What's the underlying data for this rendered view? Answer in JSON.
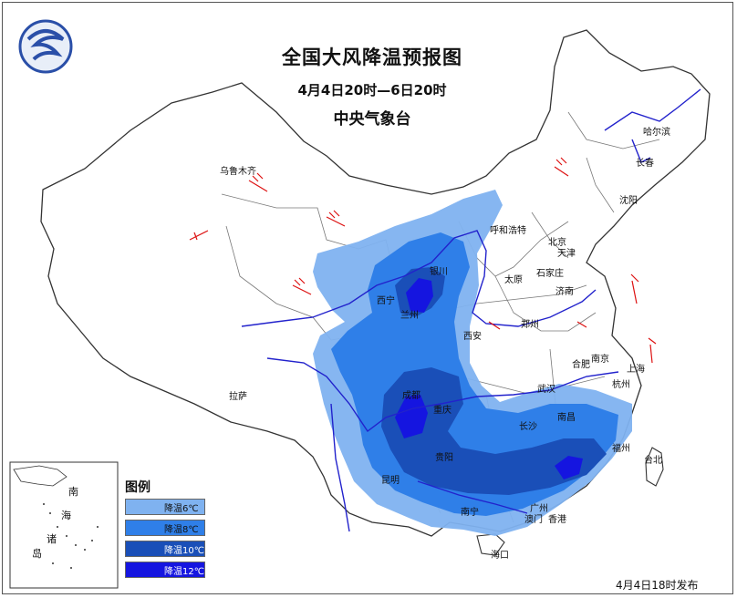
{
  "map": {
    "title": "全国大风降温预报图",
    "period": "4月4日20时—6日20时",
    "agency": "中央气象台",
    "issued": "4月4日18时发布"
  },
  "legend": {
    "title": "图例",
    "items": [
      {
        "label": "降温6℃",
        "color": "#7fb2f0"
      },
      {
        "label": "降温8℃",
        "color": "#2f7fe8"
      },
      {
        "label": "降温10℃",
        "color": "#1a4fb8"
      },
      {
        "label": "降温12℃",
        "color": "#1515e0"
      }
    ]
  },
  "inset": {
    "labels": [
      "南",
      "海",
      "诸",
      "岛"
    ]
  },
  "cities": [
    "乌鲁木齐",
    "哈尔滨",
    "长春",
    "沈阳",
    "呼和浩特",
    "北京",
    "天津",
    "石家庄",
    "太原",
    "济南",
    "银川",
    "西宁",
    "兰州",
    "郑州",
    "西安",
    "合肥",
    "上海",
    "南京",
    "杭州",
    "武汉",
    "成都",
    "重庆",
    "长沙",
    "南昌",
    "贵阳",
    "福州",
    "台北",
    "昆明",
    "南宁",
    "广州",
    "澳门",
    "香港",
    "海口",
    "拉萨"
  ],
  "logo": {
    "icon": "cma-logo-icon"
  }
}
